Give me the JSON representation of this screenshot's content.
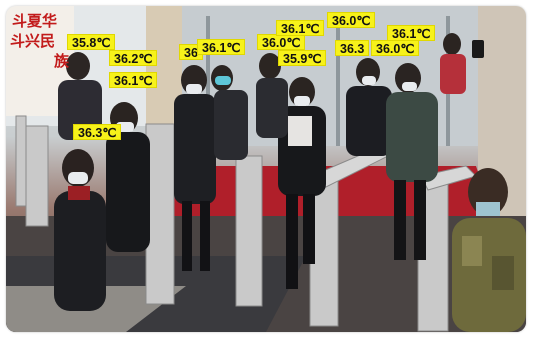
{
  "sign": {
    "line1": "斗夏华",
    "line2": "斗兴民",
    "line3": "族"
  },
  "temperature_labels": [
    "35.8℃",
    "36.2℃",
    "36.1℃",
    "36.3℃",
    "36",
    "36.1℃",
    "36.0℃",
    "36.1℃",
    "36.0℃",
    "35.9℃",
    "36.3",
    "36.0℃",
    "36.1℃"
  ]
}
